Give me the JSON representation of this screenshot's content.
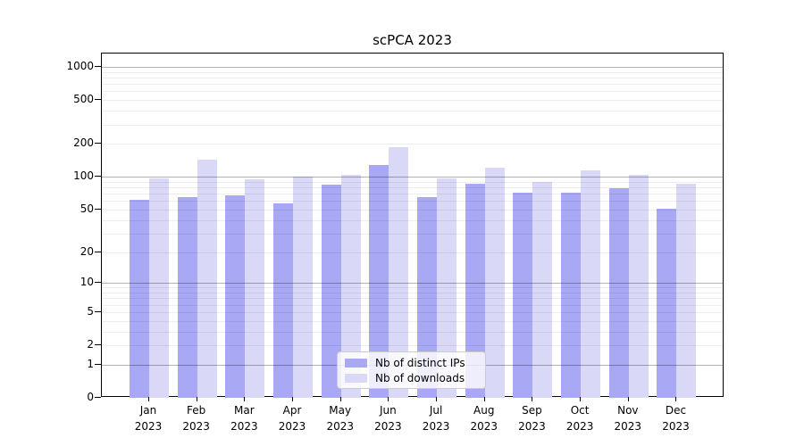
{
  "chart_data": {
    "type": "bar",
    "title": "scPCA 2023",
    "categories": [
      "Jan 2023",
      "Feb 2023",
      "Mar 2023",
      "Apr 2023",
      "May 2023",
      "Jun 2023",
      "Jul 2023",
      "Aug 2023",
      "Sep 2023",
      "Oct 2023",
      "Nov 2023",
      "Dec 2023"
    ],
    "series": [
      {
        "name": "Nb of distinct IPs",
        "color": "#a8a8f5",
        "values": [
          62,
          65,
          68,
          57,
          85,
          128,
          65,
          87,
          72,
          71,
          78,
          51
        ]
      },
      {
        "name": "Nb of downloads",
        "color": "#d9d9f7",
        "values": [
          96,
          144,
          95,
          101,
          105,
          188,
          97,
          122,
          89,
          115,
          104,
          86
        ]
      }
    ],
    "yscale": "log1p",
    "ylim": [
      0,
      1200
    ],
    "yticks": [
      0,
      1,
      2,
      5,
      10,
      20,
      50,
      100,
      200,
      500,
      1000
    ],
    "ytick_labels": [
      "0",
      "1",
      "2",
      "5",
      "10",
      "20",
      "50",
      "100",
      "200",
      "500",
      "1000"
    ],
    "grid": "on",
    "legend_position": "bottom-center",
    "xlabel": "",
    "ylabel": ""
  },
  "colors": {
    "major_grid": "rgba(0,0,0,0.30)",
    "minor_grid": "rgba(0,0,0,0.07)",
    "spine": "#000000"
  }
}
